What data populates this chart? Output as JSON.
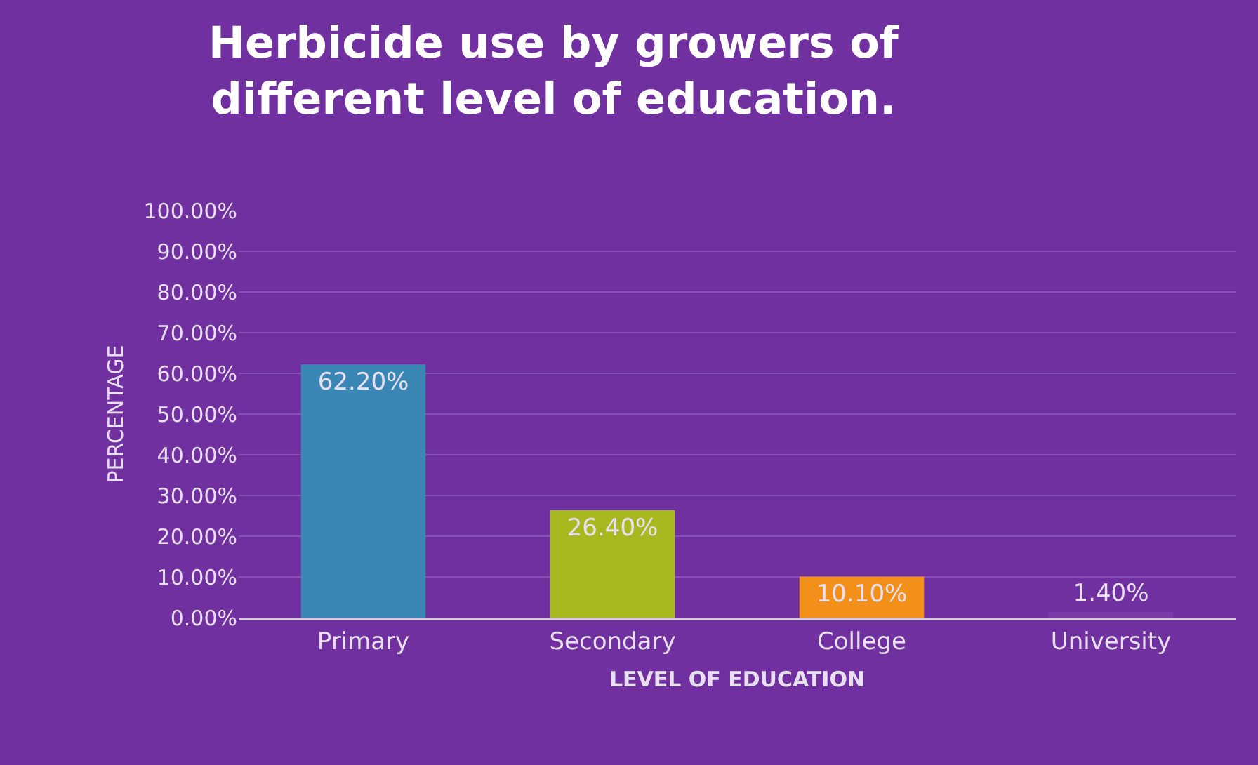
{
  "chart_data": {
    "type": "bar",
    "title": "Herbicide use by growers of\ndifferent level of education.",
    "xlabel": "LEVEL OF EDUCATION",
    "ylabel": "PERCENTAGE",
    "categories": [
      "Primary",
      "Secondary",
      "College",
      "University"
    ],
    "values": [
      62.2,
      26.4,
      10.1,
      1.4
    ],
    "colors": [
      "#3a87b5",
      "#a8b920",
      "#f39019",
      "#7a3aa8"
    ],
    "value_labels": [
      "62.20%",
      "26.40%",
      "10.10%",
      "1.40%"
    ],
    "ylim": [
      0,
      100
    ],
    "yticks": [
      {
        "value": 0,
        "label": "0.00%"
      },
      {
        "value": 10,
        "label": "10.00%"
      },
      {
        "value": 20,
        "label": "20.00%"
      },
      {
        "value": 30,
        "label": "30.00%"
      },
      {
        "value": 40,
        "label": "40.00%"
      },
      {
        "value": 50,
        "label": "50.00%"
      },
      {
        "value": 60,
        "label": "60.00%"
      },
      {
        "value": 70,
        "label": "70.00%"
      },
      {
        "value": 80,
        "label": "80.00%"
      },
      {
        "value": 90,
        "label": "90.00%"
      },
      {
        "value": 100,
        "label": "100.00%"
      }
    ],
    "grid": "y"
  }
}
